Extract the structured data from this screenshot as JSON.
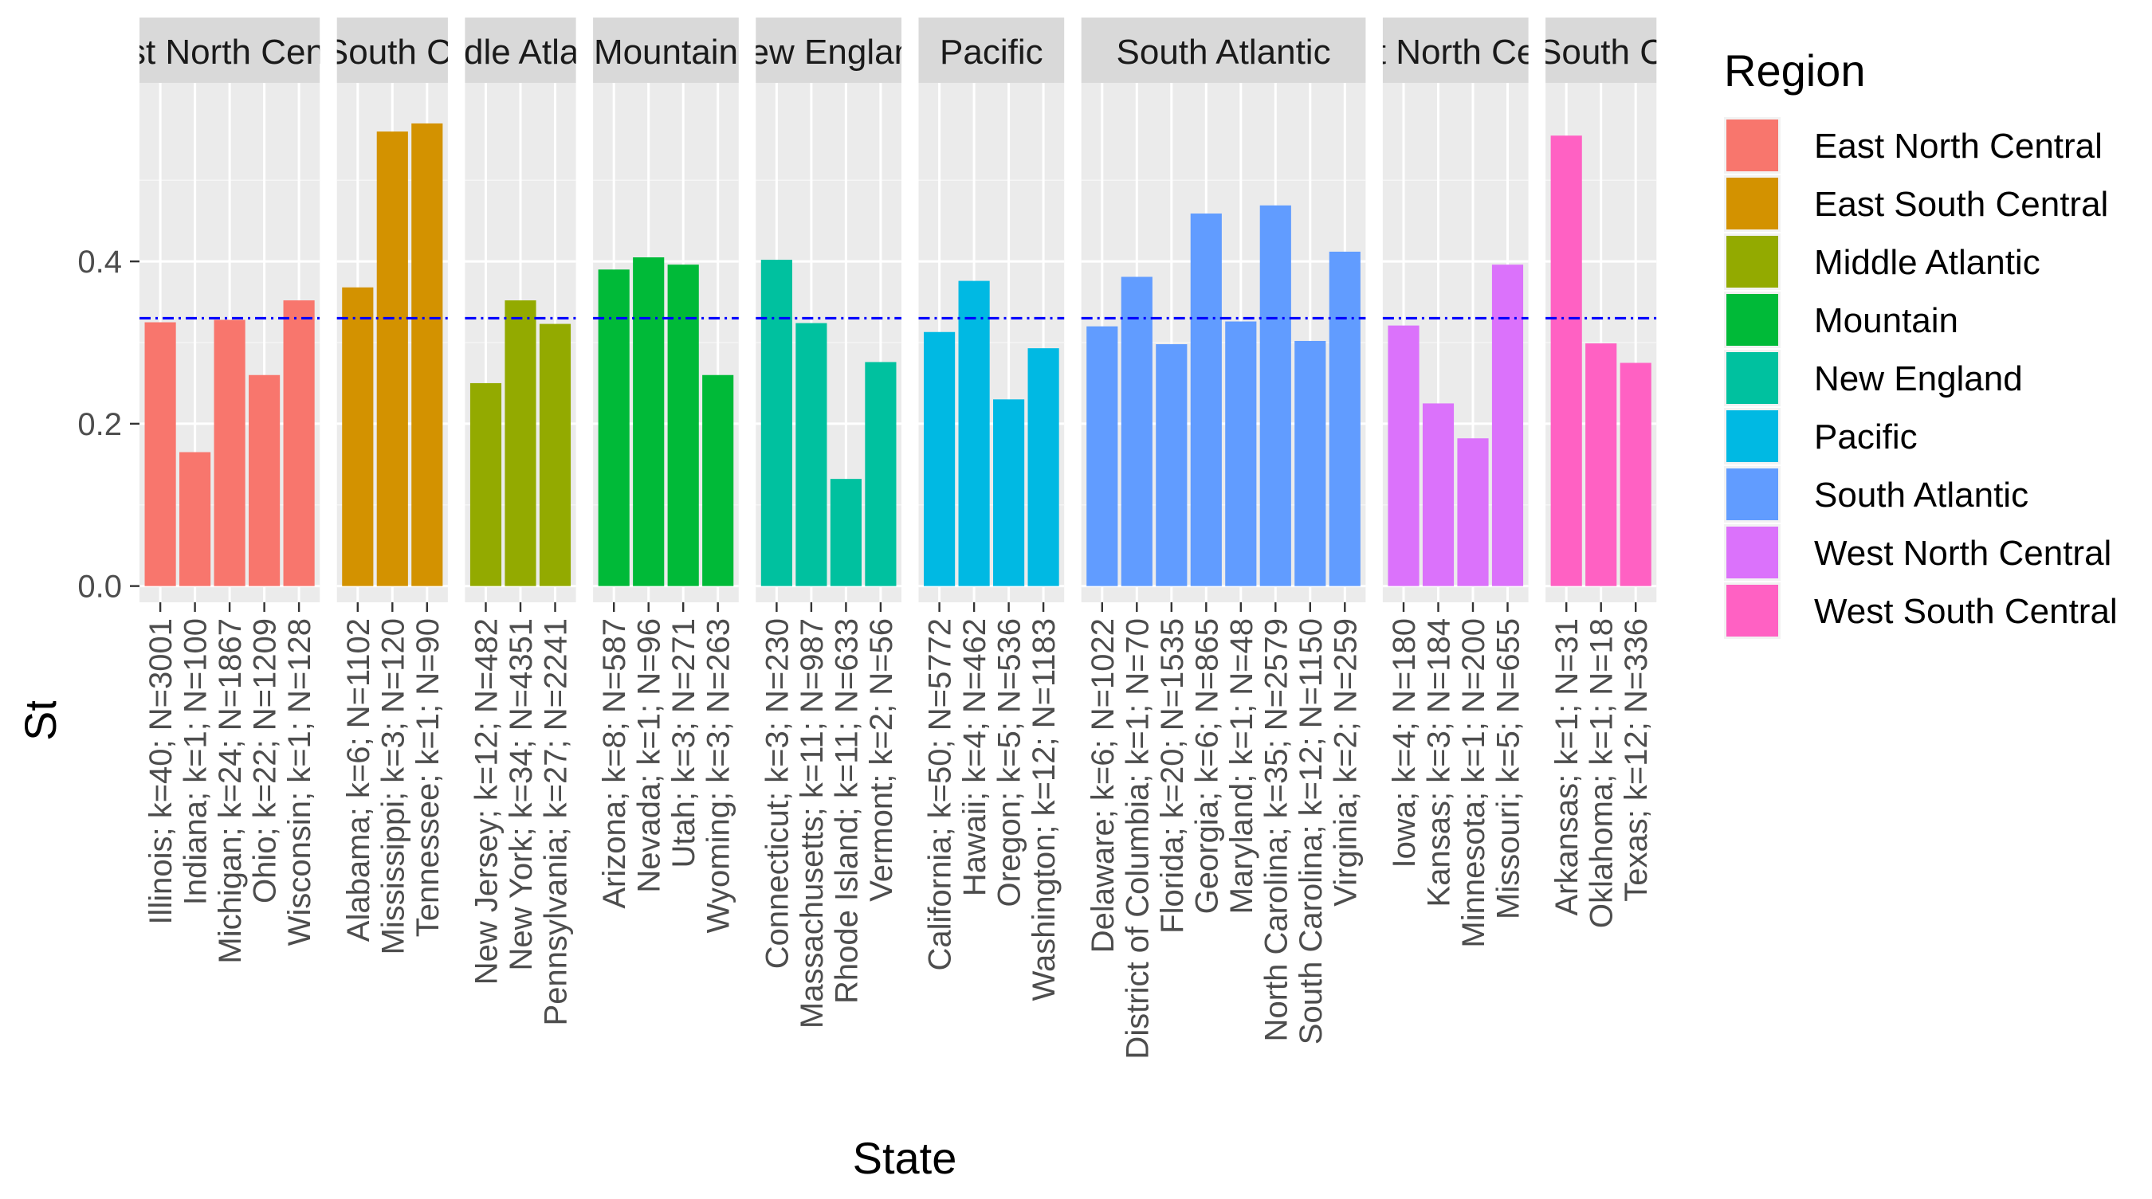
{
  "chart_data": {
    "type": "bar",
    "faceted": true,
    "xlabel": "State",
    "ylabel": "State-level P(C) controlled for baseline",
    "ylim": [
      -0.02,
      0.62
    ],
    "y_ticks": [
      0.0,
      0.2,
      0.4
    ],
    "y_tick_labels": [
      "0.0",
      "0.2",
      "0.4"
    ],
    "grid": true,
    "reference_line": {
      "value": 0.33,
      "style": "dash-dot",
      "color": "#0000ff"
    },
    "legend": {
      "title": "Region",
      "position": "right"
    },
    "series": [
      {
        "name": "East North Central",
        "color": "#F8766D",
        "strip_label": "East North Central",
        "categories": [
          "Illinois; k=40; N=3001",
          "Indiana; k=1; N=100",
          "Michigan; k=24; N=1867",
          "Ohio; k=22; N=1209",
          "Wisconsin; k=1; N=128"
        ],
        "values": [
          0.325,
          0.165,
          0.328,
          0.26,
          0.352
        ]
      },
      {
        "name": "East South Central",
        "color": "#D39200",
        "strip_label": "East South Central",
        "categories": [
          "Alabama; k=6; N=1102",
          "Mississippi; k=3; N=120",
          "Tennessee; k=1; N=90"
        ],
        "values": [
          0.368,
          0.56,
          0.57
        ]
      },
      {
        "name": "Middle Atlantic",
        "color": "#93AA00",
        "strip_label": "Middle Atlantic",
        "categories": [
          "New Jersey; k=12; N=482",
          "New York; k=34; N=4351",
          "Pennsylvania; k=27; N=2241"
        ],
        "values": [
          0.25,
          0.352,
          0.323
        ]
      },
      {
        "name": "Mountain",
        "color": "#00BA38",
        "strip_label": "Mountain",
        "categories": [
          "Arizona; k=8; N=587",
          "Nevada; k=1; N=96",
          "Utah; k=3; N=271",
          "Wyoming; k=3; N=263"
        ],
        "values": [
          0.39,
          0.405,
          0.396,
          0.26
        ]
      },
      {
        "name": "New England",
        "color": "#00C19F",
        "strip_label": "New England",
        "categories": [
          "Connecticut; k=3; N=230",
          "Massachusetts; k=11; N=987",
          "Rhode Island; k=11; N=633",
          "Vermont; k=2; N=56"
        ],
        "values": [
          0.402,
          0.324,
          0.132,
          0.276
        ]
      },
      {
        "name": "Pacific",
        "color": "#00B9E3",
        "strip_label": "Pacific",
        "categories": [
          "California; k=50; N=5772",
          "Hawaii; k=4; N=462",
          "Oregon; k=5; N=536",
          "Washington; k=12; N=1183"
        ],
        "values": [
          0.313,
          0.376,
          0.23,
          0.293
        ]
      },
      {
        "name": "South Atlantic",
        "color": "#619CFF",
        "strip_label": "South Atlantic",
        "categories": [
          "Delaware; k=6; N=1022",
          "District of Columbia; k=1; N=70",
          "Florida; k=20; N=1535",
          "Georgia; k=6; N=865",
          "Maryland; k=1; N=48",
          "North Carolina; k=35; N=2579",
          "South Carolina; k=12; N=1150",
          "Virginia; k=2; N=259"
        ],
        "values": [
          0.32,
          0.381,
          0.298,
          0.459,
          0.326,
          0.469,
          0.302,
          0.412
        ]
      },
      {
        "name": "West North Central",
        "color": "#DB72FB",
        "strip_label": "West North Central",
        "categories": [
          "Iowa; k=4; N=180",
          "Kansas; k=3; N=184",
          "Minnesota; k=1; N=200",
          "Missouri; k=5; N=655"
        ],
        "values": [
          0.321,
          0.225,
          0.182,
          0.396
        ]
      },
      {
        "name": "West South Central",
        "color": "#FF61C3",
        "strip_label": "West South Central",
        "categories": [
          "Arkansas; k=1; N=31",
          "Oklahoma; k=1; N=18",
          "Texas; k=12; N=336"
        ],
        "values": [
          0.555,
          0.299,
          0.275
        ]
      }
    ]
  }
}
